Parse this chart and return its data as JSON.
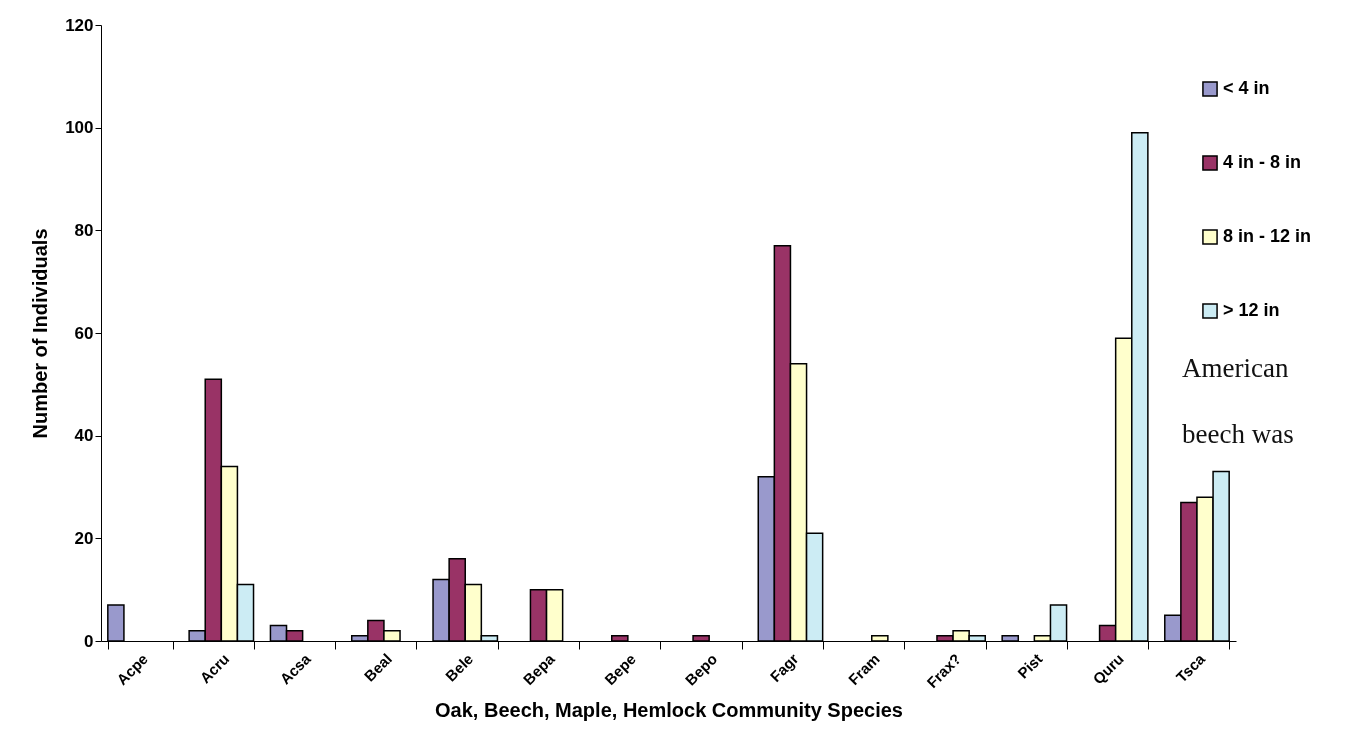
{
  "chart_data": {
    "type": "bar",
    "xlabel": "Oak, Beech, Maple, Hemlock Community Species",
    "ylabel": "Number of Individuals",
    "categories": [
      "Acpe",
      "Acru",
      "Acsa",
      "Beal",
      "Bele",
      "Bepa",
      "Bepe",
      "Bepo",
      "Fagr",
      "Fram",
      "Frax?",
      "Pist",
      "Quru",
      "Tsca"
    ],
    "series": [
      {
        "name": "< 4 in",
        "color": "#9999cc",
        "values": [
          7,
          2,
          3,
          1,
          12,
          0,
          0,
          0,
          32,
          0,
          0,
          1,
          0,
          5
        ]
      },
      {
        "name": "4 in - 8 in",
        "color": "#993366",
        "values": [
          0,
          51,
          2,
          4,
          16,
          10,
          1,
          1,
          77,
          0,
          1,
          0,
          3,
          27
        ]
      },
      {
        "name": "8 in - 12 in",
        "color": "#ffffcc",
        "values": [
          0,
          34,
          0,
          2,
          11,
          10,
          0,
          0,
          54,
          1,
          2,
          1,
          59,
          28
        ]
      },
      {
        "name": "> 12 in",
        "color": "#ccecf4",
        "values": [
          0,
          11,
          0,
          0,
          1,
          0,
          0,
          0,
          21,
          0,
          1,
          7,
          99,
          33
        ]
      }
    ],
    "ylim": [
      0,
      120
    ],
    "yticks": [
      0,
      20,
      40,
      60,
      80,
      100,
      120
    ],
    "grid": false,
    "legend": "right",
    "annotations": [
      "American beech was"
    ]
  }
}
